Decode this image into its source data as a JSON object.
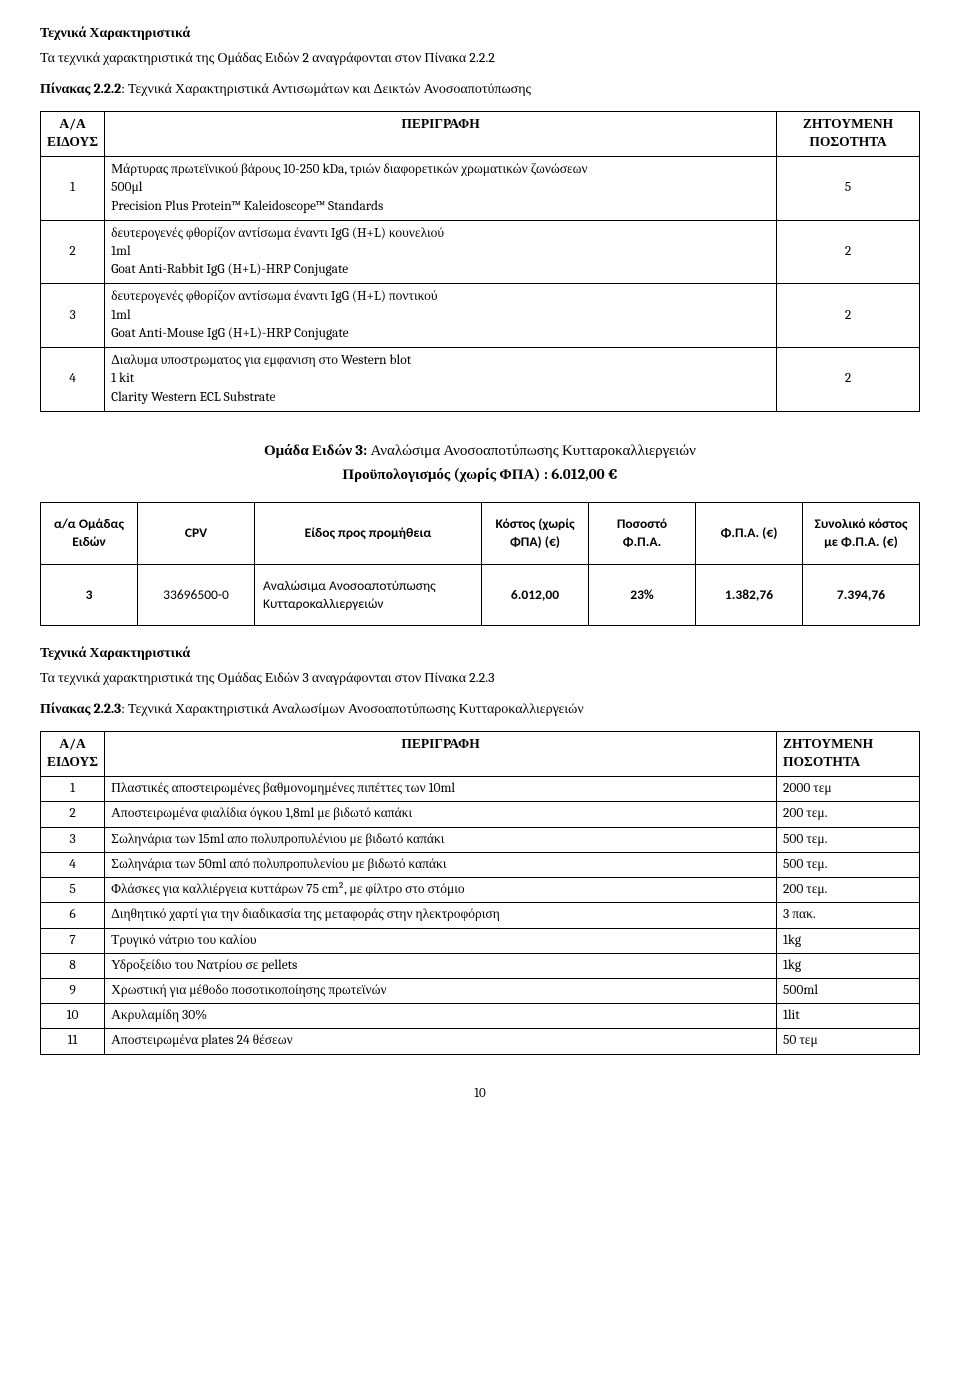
{
  "section1": {
    "heading": "Τεχνικά Χαρακτηριστικά",
    "intro": "Τα τεχνικά χαρακτηριστικά της Ομάδας Ειδών 2 αναγράφονται στον Πίνακα 2.2.2",
    "table_caption_prefix": "Πίνακας 2.2.2",
    "table_caption_rest": ": Τεχνικά Χαρακτηριστικά Αντισωμάτων και Δεικτών Ανοσοαποτύπωσης",
    "col_aa": "Α/Α ΕΙΔΟΥΣ",
    "col_desc": "ΠΕΡΙΓΡΑΦΗ",
    "col_qty": "ΖΗΤΟΥΜΕΝΗ ΠΟΣΟΤΗΤΑ",
    "rows": [
      {
        "n": "1",
        "l1": "Μάρτυρας πρωτεϊνικού βάρους 10-250 kDa, τριών διαφορετικών χρωματικών ζωνώσεων",
        "l2": "500μl",
        "l3": "Precision Plus Protein™ Kaleidoscope™ Standards",
        "q": "5"
      },
      {
        "n": "2",
        "l1": "δευτερογενές φθορίζον αντίσωμα έναντι IgG (H+L) κουνελιού",
        "l2": "1ml",
        "l3": "Goat Anti-Rabbit IgG (H+L)-HRP Conjugate",
        "q": "2"
      },
      {
        "n": "3",
        "l1": "δευτερογενές φθορίζον αντίσωμα έναντι IgG (H+L) ποντικού",
        "l2": "1ml",
        "l3": "Goat Anti-Mouse IgG (H+L)-HRP Conjugate",
        "q": "2"
      },
      {
        "n": "4",
        "l1": "Διαλυμα υποστρωματος για εμφανιση στο Western blot",
        "l2": "1 kit",
        "l3": "Clarity Western ECL Substrate",
        "q": "2"
      }
    ]
  },
  "group3": {
    "title_prefix": "Ομάδα Ειδών 3:",
    "title_rest": " Αναλώσιμα Ανοσοαποτύπωσης Κυτταροκαλλιεργειών",
    "budget": "Προϋπολογισμός (χωρίς ΦΠΑ) : 6.012,00 €",
    "t2": {
      "h1": "α/α Ομάδας Ειδών",
      "h2": "CPV",
      "h3": "Είδος προς προμήθεια",
      "h4": "Κόστος (χωρίς ΦΠΑ) (€)",
      "h5": "Ποσοστό Φ.Π.Α.",
      "h6": "Φ.Π.Α. (€)",
      "h7": "Συνολικό κόστος με Φ.Π.Α. (€)",
      "row": {
        "c1": "3",
        "c2": "33696500-0",
        "c3": "Αναλώσιμα Ανοσοαποτύπωσης Κυτταροκαλλιεργειών",
        "c4": "6.012,00",
        "c5": "23%",
        "c6": "1.382,76",
        "c7": "7.394,76"
      }
    }
  },
  "section3": {
    "heading": "Τεχνικά Χαρακτηριστικά",
    "intro": "Τα τεχνικά χαρακτηριστικά της Ομάδας Ειδών 3 αναγράφονται στον Πίνακα 2.2.3",
    "table_caption_prefix": "Πίνακας 2.2.3",
    "table_caption_rest": ": Τεχνικά Χαρακτηριστικά Αναλωσίμων Ανοσοαποτύπωσης Κυτταροκαλλιεργειών",
    "col_aa": "Α/Α ΕΙΔΟΥΣ",
    "col_desc": "ΠΕΡΙΓΡΑΦΗ",
    "col_qty": "ΖΗΤΟΥΜΕΝΗ ΠΟΣΟΤΗΤΑ",
    "rows": [
      {
        "n": "1",
        "d": "Πλαστικές αποστειρωμένες βαθμονομημένες πιπέττες των 10ml",
        "q": "2000 τεμ"
      },
      {
        "n": "2",
        "d": "Αποστειρωμένα φιαλίδια όγκου 1,8ml με βιδωτό καπάκι",
        "q": "200 τεμ."
      },
      {
        "n": "3",
        "d": "Σωληνάρια των 15ml απο πολυπροπυλένιου με βιδωτό καπάκι",
        "q": "500 τεμ."
      },
      {
        "n": "4",
        "d": "Σωληνάρια των 50ml από πολυπροπυλενίου με βιδωτό καπάκι",
        "q": "500 τεμ."
      },
      {
        "n": "5",
        "d": "Φλάσκες για καλλιέργεια κυττάρων 75 cm², με φίλτρο στο στόμιο",
        "q": "200 τεμ."
      },
      {
        "n": "6",
        "d": "Διηθητικό χαρτί για την διαδικασία της μεταφοράς στην ηλεκτροφόριση",
        "q": "3 πακ."
      },
      {
        "n": "7",
        "d": "Τρυγικό νάτριο του καλίου",
        "q": "1kg"
      },
      {
        "n": "8",
        "d": "Υδροξείδιο του Νατρίου σε pellets",
        "q": "1kg"
      },
      {
        "n": "9",
        "d": "Χρωστική για μέθοδο ποσοτικοποίησης πρωτεϊνών",
        "q": "500ml"
      },
      {
        "n": "10",
        "d": "Ακρυλαμίδη 30%",
        "q": "1lit"
      },
      {
        "n": "11",
        "d": "Αποστειρωμένα plates 24 θέσεων",
        "q": "50 τεμ"
      }
    ]
  },
  "page_number": "10"
}
